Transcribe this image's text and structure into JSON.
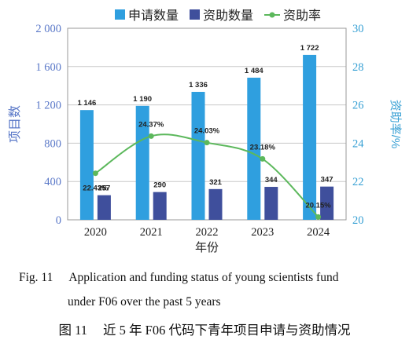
{
  "chart_data": {
    "type": "bar+line",
    "categories": [
      "2020",
      "2021",
      "2022",
      "2023",
      "2024"
    ],
    "series": [
      {
        "name": "申请数量",
        "kind": "bar",
        "axis": "left",
        "color": "#2f9fdf",
        "values": [
          1146,
          1190,
          1336,
          1484,
          1722
        ],
        "labels": [
          "1 146",
          "1 190",
          "1 336",
          "1 484",
          "1 722"
        ]
      },
      {
        "name": "资助数量",
        "kind": "bar",
        "axis": "left",
        "color": "#3f4f9c",
        "values": [
          257,
          290,
          321,
          344,
          347
        ],
        "labels": [
          "257",
          "290",
          "321",
          "344",
          "347"
        ]
      },
      {
        "name": "资助率",
        "kind": "line",
        "axis": "right",
        "color": "#5cb85c",
        "values": [
          22.43,
          24.37,
          24.03,
          23.18,
          20.15
        ],
        "labels": [
          "22.43%",
          "24.37%",
          "24.03%",
          "23.18%",
          "20.15%"
        ]
      }
    ],
    "xlabel": "年份",
    "ylabel": "项目数",
    "y2label": "资助率/%",
    "ylim": [
      0,
      2000
    ],
    "y2lim": [
      20,
      30
    ],
    "yticks": [
      0,
      400,
      800,
      1200,
      1600,
      2000
    ],
    "ytick_labels": [
      "0",
      "400",
      "800",
      "1 200",
      "1 600",
      "2 000"
    ],
    "y2ticks": [
      20,
      22,
      24,
      26,
      28,
      30
    ],
    "y2tick_labels": [
      "20",
      "22",
      "24",
      "26",
      "28",
      "30"
    ],
    "grid": "horizontal",
    "legend": "top"
  },
  "caption": {
    "en_number": "Fig. 11",
    "en_line1": "Application and funding status of young scientists fund",
    "en_line2": "under F06 over the past 5 years",
    "zh_number": "图 11",
    "zh_text": "近 5 年 F06 代码下青年项目申请与资助情况"
  }
}
